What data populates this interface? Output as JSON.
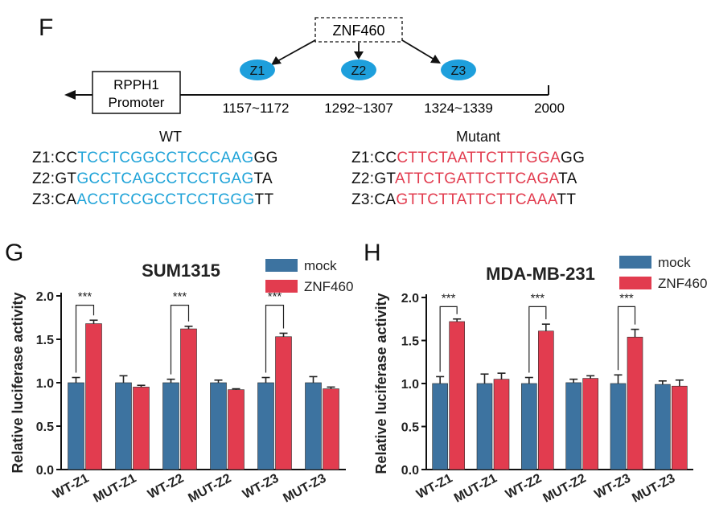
{
  "panel_f": {
    "letter": "F",
    "tf_label": "ZNF460",
    "promoter_label_1": "RPPH1",
    "promoter_label_2": "Promoter",
    "sites": [
      {
        "name": "Z1",
        "range": "1157~1172"
      },
      {
        "name": "Z2",
        "range": "1292~1307"
      },
      {
        "name": "Z3",
        "range": "1324~1339"
      }
    ],
    "end_label": "2000",
    "wt_header": "WT",
    "mut_header": "Mutant",
    "wt_rows": [
      {
        "prefix": "Z1:CC",
        "core": "TCCTCGGCCTCCCAAG",
        "suffix": "GG"
      },
      {
        "prefix": "Z2:GT",
        "core": "GCCTCAGCCTCCTGAG",
        "suffix": "TA"
      },
      {
        "prefix": "Z3:CA",
        "core": "ACCTCCGCCTCCTGGG",
        "suffix": "TT"
      }
    ],
    "mut_rows": [
      {
        "prefix": "Z1:CC",
        "core": "CTTCTAATTCTTTGGA",
        "suffix": "GG"
      },
      {
        "prefix": "Z2:GT",
        "core": "ATTCTGATTCTTCAGA",
        "suffix": "TA"
      },
      {
        "prefix": "Z3:CA",
        "core": "GTTCTTATTCTTCAAA",
        "suffix": "TT"
      }
    ],
    "colors": {
      "site": "#1e9fdc",
      "wt_core": "#1fa3d8",
      "mut_core": "#e23c4f"
    }
  },
  "chart_data": [
    {
      "letter": "G",
      "type": "bar",
      "title": "SUM1315",
      "ylabel": "Relative luciferase activity",
      "ylim": [
        0,
        2.0
      ],
      "yticks": [
        "0.0",
        "0.5",
        "1.0",
        "1.5",
        "2.0"
      ],
      "categories": [
        "WT-Z1",
        "MUT-Z1",
        "WT-Z2",
        "MUT-Z2",
        "WT-Z3",
        "MUT-Z3"
      ],
      "series": [
        {
          "name": "mock",
          "color": "#3d73a0",
          "values": [
            1.0,
            1.0,
            1.0,
            1.0,
            1.0,
            1.0
          ],
          "errors": [
            0.06,
            0.08,
            0.04,
            0.03,
            0.06,
            0.07
          ]
        },
        {
          "name": "ZNF460",
          "color": "#e23c4f",
          "values": [
            1.68,
            0.95,
            1.62,
            0.92,
            1.53,
            0.93
          ],
          "errors": [
            0.04,
            0.02,
            0.03,
            0.01,
            0.04,
            0.02
          ]
        }
      ],
      "significance": [
        {
          "category": "WT-Z1",
          "label": "***"
        },
        {
          "category": "WT-Z2",
          "label": "***"
        },
        {
          "category": "WT-Z3",
          "label": "***"
        }
      ],
      "legend": "top-right"
    },
    {
      "letter": "H",
      "type": "bar",
      "title": "MDA-MB-231",
      "ylabel": "Relative luciferase activity",
      "ylim": [
        0,
        2.0
      ],
      "yticks": [
        "0.0",
        "0.5",
        "1.0",
        "1.5",
        "2.0"
      ],
      "categories": [
        "WT-Z1",
        "MUT-Z1",
        "WT-Z2",
        "MUT-Z2",
        "WT-Z3",
        "MUT-Z3"
      ],
      "series": [
        {
          "name": "mock",
          "color": "#3d73a0",
          "values": [
            1.0,
            1.0,
            1.0,
            1.01,
            1.0,
            0.99
          ],
          "errors": [
            0.08,
            0.11,
            0.07,
            0.04,
            0.1,
            0.04
          ]
        },
        {
          "name": "ZNF460",
          "color": "#e23c4f",
          "values": [
            1.72,
            1.05,
            1.61,
            1.06,
            1.54,
            0.97
          ],
          "errors": [
            0.03,
            0.07,
            0.08,
            0.03,
            0.09,
            0.07
          ]
        }
      ],
      "significance": [
        {
          "category": "WT-Z1",
          "label": "***"
        },
        {
          "category": "WT-Z2",
          "label": "***"
        },
        {
          "category": "WT-Z3",
          "label": "***"
        }
      ],
      "legend": "top-right"
    }
  ]
}
